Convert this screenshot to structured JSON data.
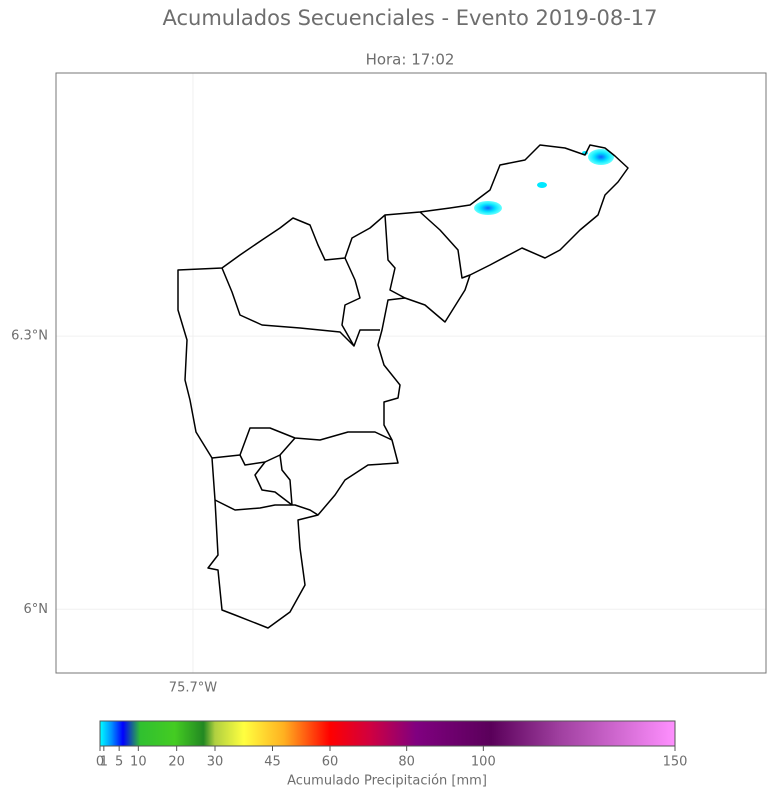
{
  "title": "Acumulados Secuenciales - Evento 2019-08-17",
  "subtitle": "Hora: 17:02",
  "map": {
    "xlim": [
      -75.8505,
      -75.0703
    ],
    "ylim": [
      5.93,
      6.589
    ],
    "xticks": [
      {
        "value": -75.7,
        "label": "75.7°W"
      }
    ],
    "yticks": [
      {
        "value": 6.3,
        "label": "6.3°N"
      },
      {
        "value": 6,
        "label": "6°N"
      }
    ],
    "grid": true
  },
  "colorbar": {
    "label": "Acumulado Precipitación [mm]",
    "lim": [
      0,
      150
    ],
    "ticks": [
      0,
      1,
      5,
      10,
      20,
      30,
      45,
      60,
      80,
      100,
      150
    ]
  }
}
